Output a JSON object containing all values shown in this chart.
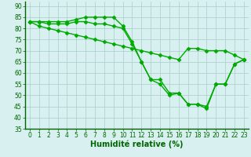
{
  "series": [
    {
      "x": [
        0,
        1,
        2,
        3,
        4,
        5,
        6,
        7,
        8,
        9,
        10,
        11,
        12,
        13,
        14,
        15,
        16,
        17,
        18,
        19,
        20,
        21,
        22,
        23
      ],
      "y": [
        83,
        83,
        83,
        83,
        83,
        84,
        85,
        85,
        85,
        85,
        81,
        74,
        65,
        57,
        57,
        51,
        51,
        46,
        46,
        44,
        55,
        55,
        64,
        66
      ]
    },
    {
      "x": [
        0,
        1,
        2,
        3,
        4,
        5,
        6,
        7,
        8,
        9,
        10,
        11,
        12,
        13,
        14,
        15,
        16,
        17,
        18,
        19,
        20,
        21,
        22,
        23
      ],
      "y": [
        83,
        83,
        82,
        82,
        82,
        83,
        83,
        82,
        82,
        81,
        80,
        73,
        65,
        57,
        55,
        50,
        51,
        46,
        46,
        45,
        55,
        55,
        64,
        66
      ]
    },
    {
      "x": [
        0,
        1,
        2,
        3,
        4,
        5,
        6,
        7,
        8,
        9,
        10,
        11,
        12,
        13,
        14,
        15,
        16,
        17,
        18,
        19,
        20,
        21,
        22,
        23
      ],
      "y": [
        83,
        81,
        80,
        79,
        78,
        77,
        76,
        75,
        74,
        73,
        72,
        71,
        70,
        69,
        68,
        67,
        66,
        71,
        71,
        70,
        70,
        70,
        68,
        66
      ]
    }
  ],
  "line_color": "#00aa00",
  "marker": "D",
  "markersize": 2.5,
  "linewidth": 1.0,
  "xlabel": "Humidité relative (%)",
  "xlabel_fontsize": 7,
  "xlabel_color": "#006600",
  "xlim": [
    -0.5,
    23.5
  ],
  "ylim": [
    35,
    92
  ],
  "yticks": [
    35,
    40,
    45,
    50,
    55,
    60,
    65,
    70,
    75,
    80,
    85,
    90
  ],
  "xticks": [
    0,
    1,
    2,
    3,
    4,
    5,
    6,
    7,
    8,
    9,
    10,
    11,
    12,
    13,
    14,
    15,
    16,
    17,
    18,
    19,
    20,
    21,
    22,
    23
  ],
  "tick_fontsize": 5.5,
  "tick_color": "#006600",
  "background_color": "#d8f0f0",
  "grid_color": "#aacccc",
  "grid_linewidth": 0.5,
  "spine_color": "#006600"
}
